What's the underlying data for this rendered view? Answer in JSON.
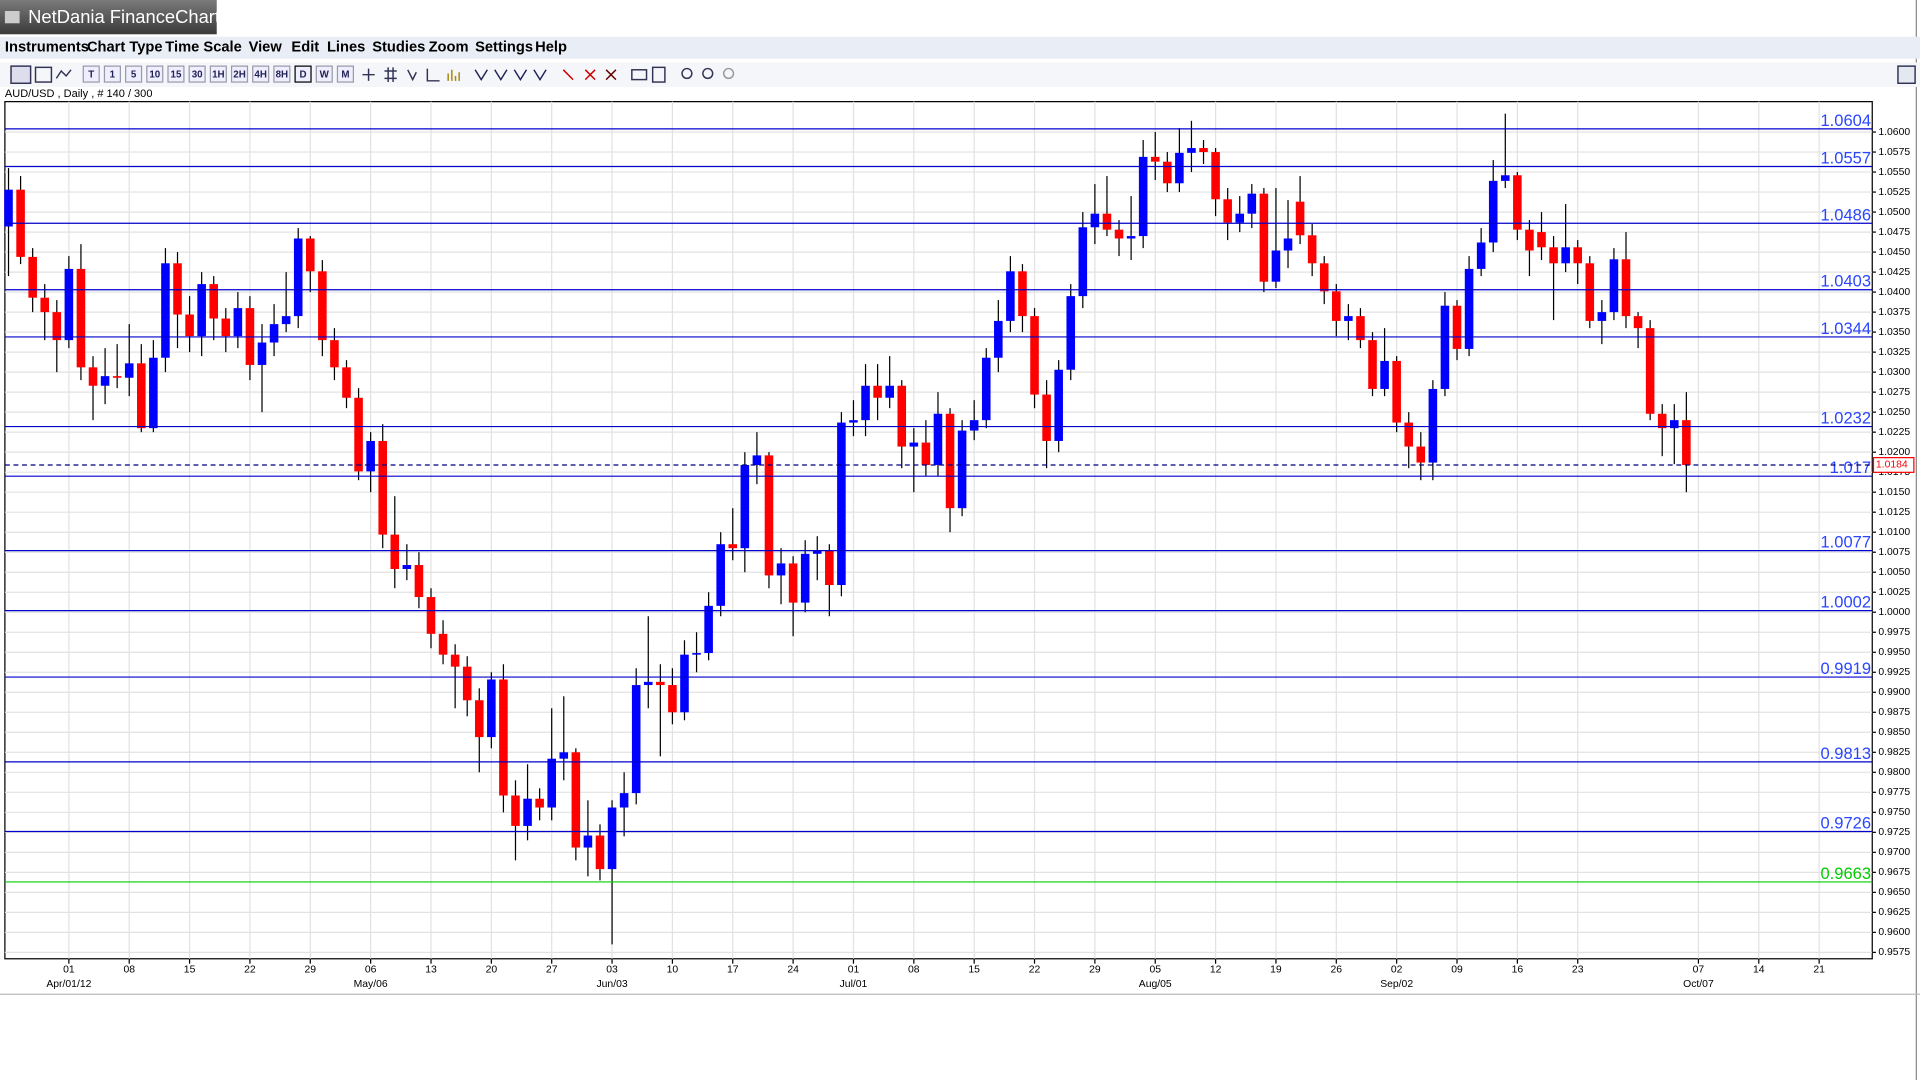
{
  "window": {
    "title": "NetDania FinanceChart"
  },
  "menu": [
    "Instruments",
    "Chart Type",
    "Time Scale",
    "View",
    "Edit",
    "Lines",
    "Studies",
    "Zoom",
    "Settings",
    "Help"
  ],
  "toolbar": {
    "timeframes": [
      "T",
      "1",
      "5",
      "10",
      "15",
      "30",
      "1H",
      "2H",
      "4H",
      "8H",
      "D",
      "W",
      "M"
    ]
  },
  "chart_data": {
    "type": "candlestick",
    "instrument": "AUD/USD , Daily , # 140 / 300",
    "up_color": "#0000ff",
    "down_color": "#ff0000",
    "values": [
      [
        1.0482,
        1.0555,
        1.042,
        1.0528
      ],
      [
        1.0528,
        1.0545,
        1.0435,
        1.0444
      ],
      [
        1.0444,
        1.0455,
        1.0375,
        1.0393
      ],
      [
        1.0393,
        1.041,
        1.034,
        1.0375
      ],
      [
        1.0375,
        1.039,
        1.03,
        1.034
      ],
      [
        1.034,
        1.0445,
        1.033,
        1.0429
      ],
      [
        1.0429,
        1.046,
        1.029,
        1.0306
      ],
      [
        1.0306,
        1.032,
        1.024,
        1.0283
      ],
      [
        1.0283,
        1.033,
        1.026,
        1.0295
      ],
      [
        1.0295,
        1.0335,
        1.028,
        1.0293
      ],
      [
        1.0293,
        1.036,
        1.027,
        1.0311
      ],
      [
        1.0311,
        1.0335,
        1.0225,
        1.023
      ],
      [
        1.023,
        1.034,
        1.0225,
        1.0318
      ],
      [
        1.0318,
        1.0455,
        1.03,
        1.0436
      ],
      [
        1.0436,
        1.045,
        1.033,
        1.0372
      ],
      [
        1.0372,
        1.0395,
        1.0325,
        1.0345
      ],
      [
        1.0345,
        1.0425,
        1.032,
        1.041
      ],
      [
        1.041,
        1.042,
        1.034,
        1.0367
      ],
      [
        1.0367,
        1.038,
        1.0325,
        1.0345
      ],
      [
        1.0345,
        1.04,
        1.033,
        1.038
      ],
      [
        1.038,
        1.0395,
        1.029,
        1.0309
      ],
      [
        1.0309,
        1.036,
        1.025,
        1.0337
      ],
      [
        1.0337,
        1.0385,
        1.032,
        1.036
      ],
      [
        1.036,
        1.0425,
        1.035,
        1.037
      ],
      [
        1.037,
        1.048,
        1.0355,
        1.0467
      ],
      [
        1.0467,
        1.047,
        1.04,
        1.0426
      ],
      [
        1.0426,
        1.044,
        1.032,
        1.034
      ],
      [
        1.034,
        1.0355,
        1.029,
        1.0306
      ],
      [
        1.0306,
        1.0315,
        1.0255,
        1.0268
      ],
      [
        1.0268,
        1.028,
        1.0165,
        1.0176
      ],
      [
        1.0176,
        1.0225,
        1.015,
        1.0214
      ],
      [
        1.0214,
        1.0235,
        1.008,
        1.0097
      ],
      [
        1.0097,
        1.0145,
        1.003,
        1.0054
      ],
      [
        1.0054,
        1.0085,
        1.004,
        1.0059
      ],
      [
        1.0059,
        1.0075,
        1.0005,
        1.0019
      ],
      [
        1.0019,
        1.003,
        0.9955,
        0.9973
      ],
      [
        0.9973,
        0.999,
        0.9935,
        0.9947
      ],
      [
        0.9947,
        0.996,
        0.988,
        0.9932
      ],
      [
        0.9932,
        0.9945,
        0.987,
        0.989
      ],
      [
        0.989,
        0.9905,
        0.98,
        0.9844
      ],
      [
        0.9844,
        0.9925,
        0.983,
        0.9916
      ],
      [
        0.9916,
        0.9935,
        0.975,
        0.9771
      ],
      [
        0.9771,
        0.979,
        0.969,
        0.9733
      ],
      [
        0.9733,
        0.981,
        0.9715,
        0.9767
      ],
      [
        0.9767,
        0.978,
        0.974,
        0.9756
      ],
      [
        0.9756,
        0.988,
        0.974,
        0.9817
      ],
      [
        0.9817,
        0.9895,
        0.979,
        0.9825
      ],
      [
        0.9825,
        0.983,
        0.969,
        0.9706
      ],
      [
        0.9706,
        0.9765,
        0.967,
        0.9721
      ],
      [
        0.9721,
        0.9735,
        0.9665,
        0.9679
      ],
      [
        0.9679,
        0.9765,
        0.9585,
        0.9756
      ],
      [
        0.9756,
        0.98,
        0.972,
        0.9774
      ],
      [
        0.9774,
        0.993,
        0.976,
        0.9909
      ],
      [
        0.9909,
        0.9995,
        0.988,
        0.9913
      ],
      [
        0.9913,
        0.9935,
        0.982,
        0.9909
      ],
      [
        0.9909,
        0.993,
        0.986,
        0.9875
      ],
      [
        0.9875,
        0.9965,
        0.9865,
        0.9947
      ],
      [
        0.9947,
        0.9975,
        0.9925,
        0.9949
      ],
      [
        0.9949,
        1.0025,
        0.994,
        1.0008
      ],
      [
        1.0008,
        1.01,
        0.9995,
        1.0085
      ],
      [
        1.0085,
        1.013,
        1.0065,
        1.008
      ],
      [
        1.008,
        1.02,
        1.005,
        1.0184
      ],
      [
        1.0184,
        1.0225,
        1.016,
        1.0196
      ],
      [
        1.0196,
        1.02,
        1.003,
        1.0046
      ],
      [
        1.0046,
        1.008,
        1.001,
        1.0061
      ],
      [
        1.0061,
        1.007,
        0.997,
        1.0012
      ],
      [
        1.0012,
        1.009,
        1.0,
        1.0073
      ],
      [
        1.0073,
        1.0095,
        1.004,
        1.0077
      ],
      [
        1.0077,
        1.0085,
        0.9995,
        1.0034
      ],
      [
        1.0034,
        1.025,
        1.002,
        1.0237
      ],
      [
        1.0237,
        1.0265,
        1.022,
        1.024
      ],
      [
        1.024,
        1.031,
        1.022,
        1.0283
      ],
      [
        1.0283,
        1.031,
        1.024,
        1.0268
      ],
      [
        1.0268,
        1.032,
        1.0255,
        1.0283
      ],
      [
        1.0283,
        1.029,
        1.018,
        1.0207
      ],
      [
        1.0207,
        1.023,
        1.015,
        1.0212
      ],
      [
        1.0212,
        1.024,
        1.017,
        1.0184
      ],
      [
        1.0184,
        1.0275,
        1.017,
        1.0248
      ],
      [
        1.0248,
        1.0255,
        1.01,
        1.013
      ],
      [
        1.013,
        1.024,
        1.012,
        1.0227
      ],
      [
        1.0227,
        1.0265,
        1.0215,
        1.024
      ],
      [
        1.024,
        1.033,
        1.023,
        1.0318
      ],
      [
        1.0318,
        1.039,
        1.03,
        1.0364
      ],
      [
        1.0364,
        1.0445,
        1.035,
        1.0426
      ],
      [
        1.0426,
        1.0435,
        1.035,
        1.037
      ],
      [
        1.037,
        1.038,
        1.0255,
        1.0272
      ],
      [
        1.0272,
        1.029,
        1.018,
        1.0214
      ],
      [
        1.0214,
        1.0315,
        1.02,
        1.0303
      ],
      [
        1.0303,
        1.041,
        1.029,
        1.0395
      ],
      [
        1.0395,
        1.05,
        1.038,
        1.0481
      ],
      [
        1.0481,
        1.0535,
        1.046,
        1.0498
      ],
      [
        1.0498,
        1.0545,
        1.047,
        1.0478
      ],
      [
        1.0478,
        1.049,
        1.0445,
        1.0467
      ],
      [
        1.0467,
        1.052,
        1.044,
        1.047
      ],
      [
        1.047,
        1.059,
        1.0455,
        1.0569
      ],
      [
        1.0569,
        1.06,
        1.054,
        1.0563
      ],
      [
        1.0563,
        1.0575,
        1.0525,
        1.0536
      ],
      [
        1.0536,
        1.0605,
        1.0525,
        1.0574
      ],
      [
        1.0574,
        1.0614,
        1.055,
        1.058
      ],
      [
        1.058,
        1.059,
        1.056,
        1.0575
      ],
      [
        1.0575,
        1.058,
        1.0495,
        1.0516
      ],
      [
        1.0516,
        1.053,
        1.0465,
        1.0487
      ],
      [
        1.0487,
        1.052,
        1.0475,
        1.0498
      ],
      [
        1.0498,
        1.0535,
        1.048,
        1.0523
      ],
      [
        1.0523,
        1.053,
        1.04,
        1.0413
      ],
      [
        1.0413,
        1.053,
        1.0405,
        1.0452
      ],
      [
        1.0452,
        1.0515,
        1.043,
        1.0467
      ],
      [
        1.0513,
        1.0545,
        1.046,
        1.0471
      ],
      [
        1.0471,
        1.0485,
        1.042,
        1.0436
      ],
      [
        1.0436,
        1.0445,
        1.0385,
        1.0401
      ],
      [
        1.0401,
        1.041,
        1.0345,
        1.0364
      ],
      [
        1.0364,
        1.0385,
        1.034,
        1.037
      ],
      [
        1.037,
        1.038,
        1.033,
        1.034
      ],
      [
        1.034,
        1.035,
        1.027,
        1.0279
      ],
      [
        1.0279,
        1.0355,
        1.027,
        1.0314
      ],
      [
        1.0314,
        1.032,
        1.0225,
        1.0237
      ],
      [
        1.0237,
        1.025,
        1.018,
        1.0207
      ],
      [
        1.0207,
        1.0225,
        1.0165,
        1.0187
      ],
      [
        1.0187,
        1.029,
        1.0165,
        1.0279
      ],
      [
        1.0279,
        1.04,
        1.027,
        1.0383
      ],
      [
        1.0383,
        1.039,
        1.0315,
        1.0329
      ],
      [
        1.0329,
        1.0445,
        1.032,
        1.0429
      ],
      [
        1.0429,
        1.048,
        1.042,
        1.0462
      ],
      [
        1.0462,
        1.0565,
        1.045,
        1.0539
      ],
      [
        1.0539,
        1.0623,
        1.053,
        1.0546
      ],
      [
        1.0546,
        1.055,
        1.0465,
        1.0478
      ],
      [
        1.0478,
        1.049,
        1.042,
        1.0452
      ],
      [
        1.0475,
        1.05,
        1.044,
        1.0456
      ],
      [
        1.0456,
        1.047,
        1.0365,
        1.0436
      ],
      [
        1.0436,
        1.051,
        1.0425,
        1.0456
      ],
      [
        1.0456,
        1.0465,
        1.041,
        1.0436
      ],
      [
        1.0436,
        1.0445,
        1.0355,
        1.0364
      ],
      [
        1.0364,
        1.039,
        1.0335,
        1.0375
      ],
      [
        1.0375,
        1.0455,
        1.0365,
        1.0441
      ],
      [
        1.0441,
        1.0475,
        1.0355,
        1.037
      ],
      [
        1.037,
        1.0375,
        1.033,
        1.0355
      ],
      [
        1.0355,
        1.0365,
        1.024,
        1.0248
      ],
      [
        1.0248,
        1.026,
        1.0195,
        1.023
      ],
      [
        1.023,
        1.026,
        1.0185,
        1.024
      ],
      [
        1.024,
        1.0275,
        1.015,
        1.0184
      ]
    ],
    "xlim": [
      -0.3,
      154.4
    ],
    "xticks": [
      {
        "value": 5,
        "label": "01"
      },
      {
        "value": 10,
        "label": "08"
      },
      {
        "value": 15,
        "label": "15"
      },
      {
        "value": 20,
        "label": "22"
      },
      {
        "value": 25,
        "label": "29"
      },
      {
        "value": 30,
        "label": "06"
      },
      {
        "value": 35,
        "label": "13"
      },
      {
        "value": 40,
        "label": "20"
      },
      {
        "value": 45,
        "label": "27"
      },
      {
        "value": 50,
        "label": "03"
      },
      {
        "value": 55,
        "label": "10"
      },
      {
        "value": 60,
        "label": "17"
      },
      {
        "value": 65,
        "label": "24"
      },
      {
        "value": 70,
        "label": "01"
      },
      {
        "value": 75,
        "label": "08"
      },
      {
        "value": 80,
        "label": "15"
      },
      {
        "value": 85,
        "label": "22"
      },
      {
        "value": 90,
        "label": "29"
      },
      {
        "value": 95,
        "label": "05"
      },
      {
        "value": 100,
        "label": "12"
      },
      {
        "value": 105,
        "label": "19"
      },
      {
        "value": 110,
        "label": "26"
      },
      {
        "value": 115,
        "label": "02"
      },
      {
        "value": 120,
        "label": "09"
      },
      {
        "value": 125,
        "label": "16"
      },
      {
        "value": 130,
        "label": "23"
      },
      {
        "value": 140,
        "label": "07"
      },
      {
        "value": 145,
        "label": "14"
      },
      {
        "value": 150,
        "label": "21"
      }
    ],
    "xticks_months": [
      {
        "value": 5,
        "label": "Apr/01/12"
      },
      {
        "value": 30,
        "label": "May/06"
      },
      {
        "value": 50,
        "label": "Jun/03"
      },
      {
        "value": 70,
        "label": "Jul/01"
      },
      {
        "value": 95,
        "label": "Aug/05"
      },
      {
        "value": 115,
        "label": "Sep/02"
      },
      {
        "value": 140,
        "label": "Oct/07"
      }
    ],
    "ylim": [
      0.9567,
      1.0638
    ],
    "yticks": [
      0.9575,
      {
        "value": 0.96,
        "label": "0.9600"
      },
      0.9625,
      {
        "value": 0.965,
        "label": "0.9650"
      },
      0.9675,
      {
        "value": 0.97,
        "label": "0.9700"
      },
      0.9725,
      {
        "value": 0.975,
        "label": "0.9750"
      },
      0.9775,
      {
        "value": 0.98,
        "label": "0.9800"
      },
      0.9825,
      {
        "value": 0.985,
        "label": "0.9850"
      },
      0.9875,
      {
        "value": 0.99,
        "label": "0.9900"
      },
      0.9925,
      {
        "value": 0.995,
        "label": "0.9950"
      },
      0.9975,
      {
        "value": 1,
        "label": "1.0000"
      },
      1.0025,
      {
        "value": 1.005,
        "label": "1.0050"
      },
      1.0075,
      {
        "value": 1.01,
        "label": "1.0100"
      },
      1.0125,
      {
        "value": 1.015,
        "label": "1.0150"
      },
      1.0175,
      {
        "value": 1.02,
        "label": "1.0200"
      },
      1.0225,
      {
        "value": 1.025,
        "label": "1.0250"
      },
      1.0275,
      {
        "value": 1.03,
        "label": "1.0300"
      },
      1.0325,
      {
        "value": 1.035,
        "label": "1.0350"
      },
      1.0375,
      {
        "value": 1.04,
        "label": "1.0400"
      },
      1.0425,
      {
        "value": 1.045,
        "label": "1.0450"
      },
      1.0475,
      {
        "value": 1.05,
        "label": "1.0500"
      },
      1.0525,
      {
        "value": 1.055,
        "label": "1.0550"
      },
      1.0575,
      {
        "value": 1.06,
        "label": "1.0600"
      }
    ],
    "grid": true,
    "levels": [
      {
        "value": 1.0604,
        "color": "#0000cc"
      },
      {
        "value": 1.0557,
        "color": "#0000cc"
      },
      {
        "value": 1.0486,
        "color": "#0000cc"
      },
      {
        "value": 1.0403,
        "color": "#0000cc"
      },
      {
        "value": 1.0344,
        "color": "#0000cc"
      },
      {
        "value": 1.0232,
        "color": "#0000cc"
      },
      {
        "value": 1.017,
        "color": "#0000cc"
      },
      {
        "value": 1.0077,
        "color": "#0000cc"
      },
      {
        "value": 1.0002,
        "color": "#0000cc"
      },
      {
        "value": 0.9919,
        "color": "#0000cc"
      },
      {
        "value": 0.9813,
        "color": "#0000cc"
      },
      {
        "value": 0.9726,
        "color": "#0000cc"
      },
      {
        "value": 0.9663,
        "color": "#00cc00"
      }
    ],
    "last_price": 1.0184
  }
}
